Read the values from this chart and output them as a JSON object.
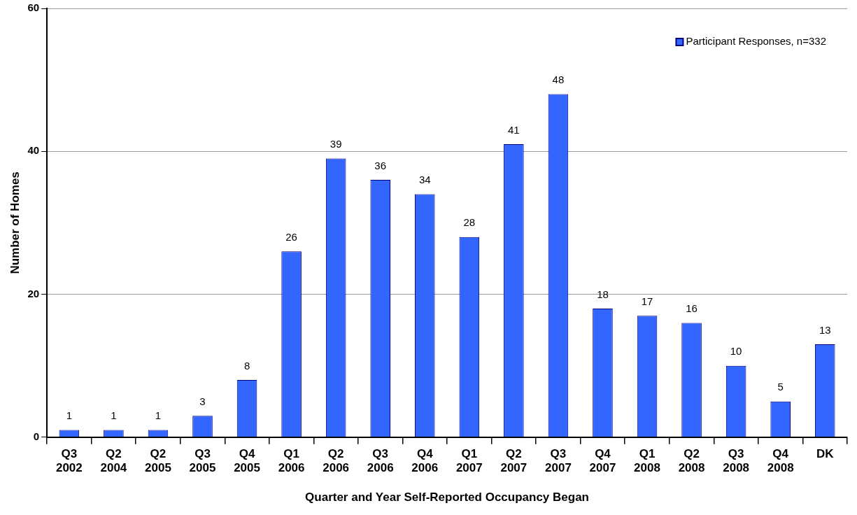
{
  "chart_data": {
    "type": "bar",
    "xlabel": "Quarter and Year Self-Reported Occupancy Began",
    "ylabel": "Number of Homes",
    "categories": [
      "Q3 2002",
      "Q2 2004",
      "Q2 2005",
      "Q3 2005",
      "Q4 2005",
      "Q1 2006",
      "Q2 2006",
      "Q3 2006",
      "Q4 2006",
      "Q1 2007",
      "Q2 2007",
      "Q3 2007",
      "Q4 2007",
      "Q1 2008",
      "Q2 2008",
      "Q3 2008",
      "Q4 2008",
      "DK"
    ],
    "series": [
      {
        "name": "Participant Responses, n=332",
        "color": "#3366ff",
        "values": [
          1,
          1,
          1,
          3,
          8,
          26,
          39,
          36,
          34,
          28,
          41,
          48,
          18,
          17,
          16,
          10,
          5,
          13
        ]
      }
    ],
    "ylim": [
      0,
      60
    ],
    "yticks": [
      0,
      20,
      40,
      60
    ],
    "grid": "y",
    "legend": "top right",
    "data_labels": true
  }
}
